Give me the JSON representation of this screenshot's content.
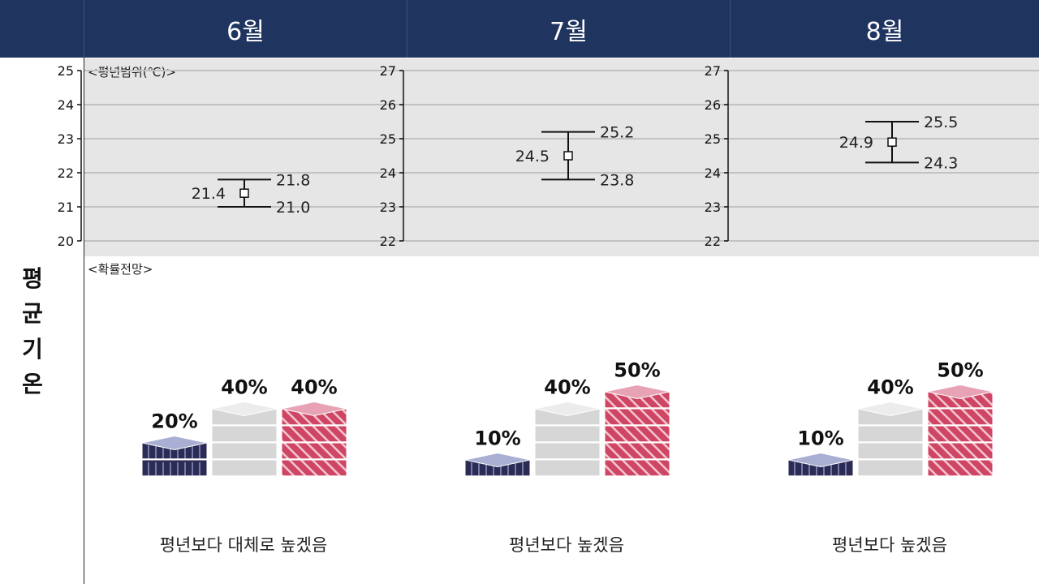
{
  "header": {
    "months": [
      "6월",
      "7월",
      "8월"
    ]
  },
  "side_label": [
    "평",
    "균",
    "기",
    "온"
  ],
  "panels": {
    "range_label": "<평년범위(℃)>",
    "prob_label": "<확률전망>"
  },
  "colors": {
    "header_bg": "#1f3560",
    "below": "#2b2b55",
    "below_top": "#a9afd2",
    "normal": "#d6d6d6",
    "above": "#cf4664",
    "above_top": "#e7a3b5"
  },
  "chart_data": [
    {
      "type": "error_bar",
      "month": "6월",
      "y_ticks": [
        "20",
        "21",
        "22",
        "23",
        "24",
        "25"
      ],
      "ylim": [
        20,
        25
      ],
      "normal_range": {
        "mean": 21.4,
        "upper": 21.8,
        "lower": 21.0
      },
      "labels": {
        "mean": "21.4",
        "upper": "21.8",
        "lower": "21.0"
      }
    },
    {
      "type": "error_bar",
      "month": "7월",
      "y_ticks": [
        "22",
        "23",
        "24",
        "25",
        "26",
        "27"
      ],
      "ylim": [
        22,
        27
      ],
      "normal_range": {
        "mean": 24.5,
        "upper": 25.2,
        "lower": 23.8
      },
      "labels": {
        "mean": "24.5",
        "upper": "25.2",
        "lower": "23.8"
      }
    },
    {
      "type": "error_bar",
      "month": "8월",
      "y_ticks": [
        "22",
        "23",
        "24",
        "25",
        "26",
        "27"
      ],
      "ylim": [
        22,
        27
      ],
      "normal_range": {
        "mean": 24.9,
        "upper": 25.5,
        "lower": 24.3
      },
      "labels": {
        "mean": "24.9",
        "upper": "25.5",
        "lower": "24.3"
      }
    },
    {
      "type": "bar",
      "month": "6월",
      "categories": [
        "below",
        "normal",
        "above"
      ],
      "values": [
        20,
        40,
        40
      ],
      "labels": [
        "20%",
        "40%",
        "40%"
      ],
      "caption": "평년보다 대체로 높겠음"
    },
    {
      "type": "bar",
      "month": "7월",
      "categories": [
        "below",
        "normal",
        "above"
      ],
      "values": [
        10,
        40,
        50
      ],
      "labels": [
        "10%",
        "40%",
        "50%"
      ],
      "caption": "평년보다 높겠음"
    },
    {
      "type": "bar",
      "month": "8월",
      "categories": [
        "below",
        "normal",
        "above"
      ],
      "values": [
        10,
        40,
        50
      ],
      "labels": [
        "10%",
        "40%",
        "50%"
      ],
      "caption": "평년보다 높겠음"
    }
  ]
}
